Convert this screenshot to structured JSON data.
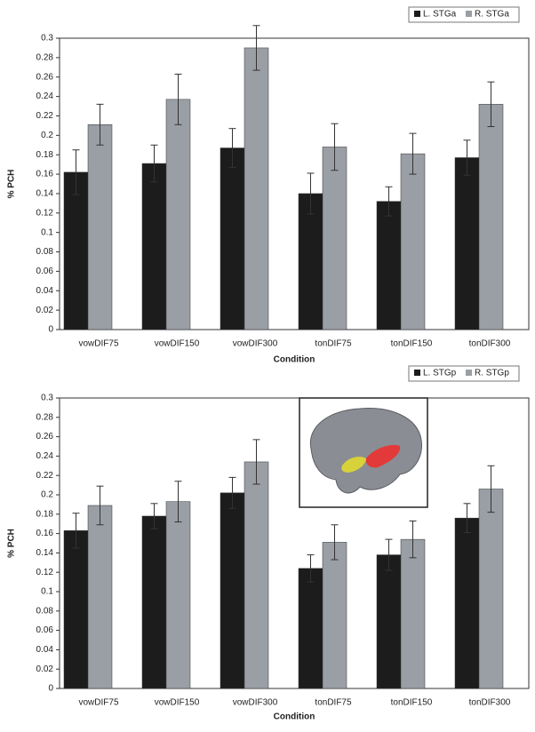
{
  "chart_data": [
    {
      "type": "bar",
      "x_label": "Condition",
      "y_label": "% PCH",
      "categories": [
        "vowDIF75",
        "vowDIF150",
        "vowDIF300",
        "tonDIF75",
        "tonDIF150",
        "tonDIF300"
      ],
      "series": [
        {
          "name": "L. STGa",
          "color": "#1c1c1c",
          "values": [
            0.162,
            0.171,
            0.187,
            0.14,
            0.132,
            0.177
          ],
          "errors": [
            0.023,
            0.019,
            0.02,
            0.021,
            0.015,
            0.018
          ]
        },
        {
          "name": "R. STGa",
          "color": "#9a9ea5",
          "values": [
            0.211,
            0.237,
            0.29,
            0.188,
            0.181,
            0.232
          ],
          "errors": [
            0.021,
            0.026,
            0.023,
            0.024,
            0.021,
            0.023
          ]
        }
      ],
      "ylim": [
        0,
        0.3
      ],
      "yticks": [
        0,
        0.02,
        0.04,
        0.06,
        0.08,
        0.1,
        0.12,
        0.14,
        0.16,
        0.18,
        0.2,
        0.22,
        0.24,
        0.26,
        0.28,
        0.3
      ]
    },
    {
      "type": "bar",
      "x_label": "Condition",
      "y_label": "% PCH",
      "categories": [
        "vowDIF75",
        "vowDIF150",
        "vowDIF300",
        "tonDIF75",
        "tonDIF150",
        "tonDIF300"
      ],
      "series": [
        {
          "name": "L. STGp",
          "color": "#1c1c1c",
          "values": [
            0.163,
            0.178,
            0.202,
            0.124,
            0.138,
            0.176
          ],
          "errors": [
            0.018,
            0.013,
            0.016,
            0.014,
            0.016,
            0.015
          ]
        },
        {
          "name": "R. STGp",
          "color": "#9a9ea5",
          "values": [
            0.189,
            0.193,
            0.234,
            0.151,
            0.154,
            0.206
          ],
          "errors": [
            0.02,
            0.021,
            0.023,
            0.018,
            0.019,
            0.024
          ]
        }
      ],
      "ylim": [
        0,
        0.3
      ],
      "yticks": [
        0,
        0.02,
        0.04,
        0.06,
        0.08,
        0.1,
        0.12,
        0.14,
        0.16,
        0.18,
        0.2,
        0.22,
        0.24,
        0.26,
        0.28,
        0.3
      ]
    }
  ]
}
